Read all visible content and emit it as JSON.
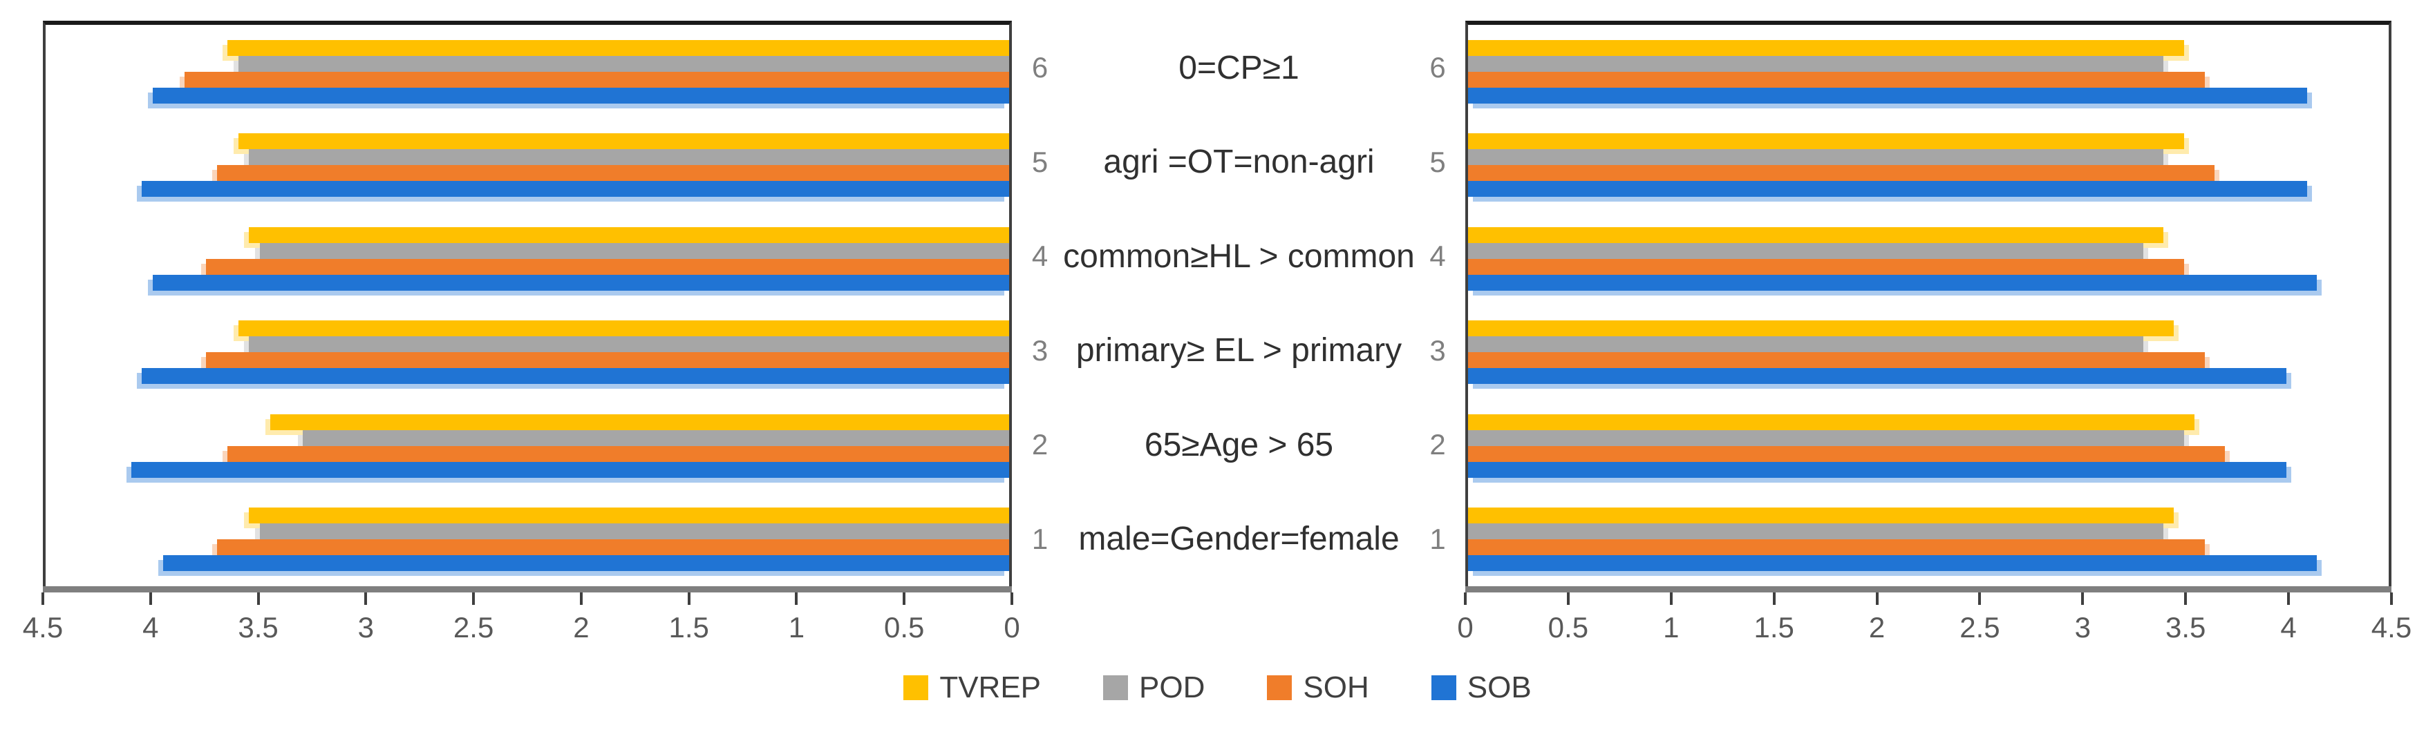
{
  "figure": {
    "background": "#ffffff",
    "plot_border_color": "#3f3f3f",
    "axis_line_color": "#7f7f7f",
    "tick_color": "#3f3f3f",
    "tick_label_color": "#595959",
    "category_label_color": "#7f7f7f",
    "row_label_color": "#303030"
  },
  "legend": {
    "position": "bottom-center",
    "items": [
      "TVREP",
      "POD",
      "SOH",
      "SOB"
    ]
  },
  "chart_data": {
    "type": "bar",
    "orientation": "horizontal",
    "layout": "mirrored-pair",
    "grid": false,
    "value_axis": {
      "min": 0,
      "max": 4.5,
      "step": 0.5
    },
    "categories": [
      "1",
      "2",
      "3",
      "4",
      "5",
      "6"
    ],
    "category_row_labels": [
      "male=Gender=female",
      "65≥Age > 65",
      "primary≥ EL > primary",
      "common≥HL > common",
      "agri =OT=non-agri",
      "0=CP≥1"
    ],
    "series": [
      {
        "name": "TVREP",
        "color": "#FFC000",
        "shadow": "rgba(255,192,0,0.32)"
      },
      {
        "name": "POD",
        "color": "#A6A6A6",
        "shadow": "rgba(166,166,166,0.32)"
      },
      {
        "name": "SOH",
        "color": "#F07D2A",
        "shadow": "rgba(240,125,42,0.32)"
      },
      {
        "name": "SOB",
        "color": "#2074D4",
        "shadow": "rgba(32,116,212,0.38)"
      }
    ],
    "charts": [
      {
        "side": "left",
        "value_axis_direction": "right-to-left",
        "tick_labels": [
          "4.5",
          "4",
          "3.5",
          "3",
          "2.5",
          "2",
          "1.5",
          "1",
          "0.5",
          "0"
        ],
        "values": {
          "TVREP": [
            3.55,
            3.45,
            3.6,
            3.55,
            3.6,
            3.65
          ],
          "POD": [
            3.5,
            3.3,
            3.55,
            3.5,
            3.55,
            3.6
          ],
          "SOH": [
            3.7,
            3.65,
            3.75,
            3.75,
            3.7,
            3.85
          ],
          "SOB": [
            3.95,
            4.1,
            4.05,
            4.0,
            4.05,
            4.0
          ]
        }
      },
      {
        "side": "right",
        "value_axis_direction": "left-to-right",
        "tick_labels": [
          "0",
          "0.5",
          "1",
          "1.5",
          "2",
          "2.5",
          "3",
          "3.5",
          "4",
          "4.5"
        ],
        "values": {
          "TVREP": [
            3.45,
            3.55,
            3.45,
            3.4,
            3.5,
            3.5
          ],
          "POD": [
            3.4,
            3.5,
            3.3,
            3.3,
            3.4,
            3.4
          ],
          "SOH": [
            3.6,
            3.7,
            3.6,
            3.5,
            3.65,
            3.6
          ],
          "SOB": [
            4.15,
            4.0,
            4.0,
            4.15,
            4.1,
            4.1
          ]
        }
      }
    ]
  }
}
